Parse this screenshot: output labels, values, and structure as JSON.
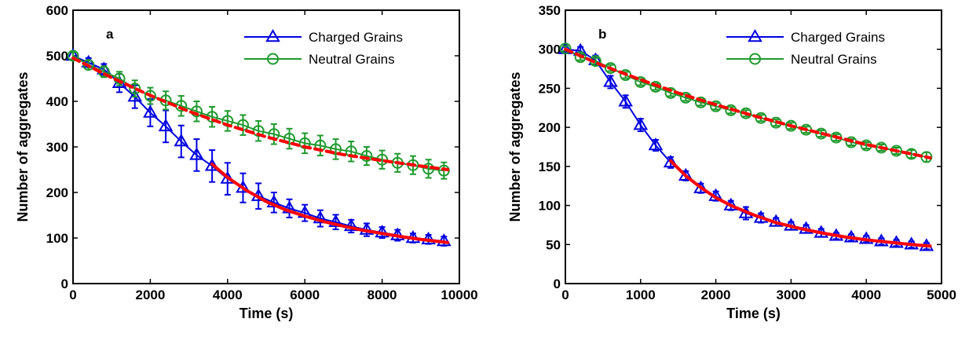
{
  "colors": {
    "charged": "#0000e0",
    "neutral": "#1f9a2e",
    "fit": "#ff0000",
    "axes": "#000000",
    "background": "#ffffff"
  },
  "chart_data": [
    {
      "type": "line",
      "panel_label": "a",
      "xlabel": "Time (s)",
      "ylabel": "Number of aggregates",
      "xlim": [
        0,
        10000
      ],
      "ylim": [
        0,
        600
      ],
      "xticks": [
        0,
        2000,
        4000,
        6000,
        8000,
        10000
      ],
      "yticks": [
        0,
        100,
        200,
        300,
        400,
        500,
        600
      ],
      "xtick_labels": [
        "0",
        "2000",
        "4000",
        "6000",
        "8000",
        "10000"
      ],
      "ytick_labels": [
        "0",
        "100",
        "200",
        "300",
        "400",
        "500",
        "600"
      ],
      "grid": false,
      "legend_position": "top-right",
      "series": [
        {
          "name": "Charged Grains",
          "color_key": "charged",
          "marker": "triangle",
          "x": [
            0,
            400,
            800,
            1200,
            1600,
            2000,
            2400,
            2800,
            3200,
            3600,
            4000,
            4400,
            4800,
            5200,
            5600,
            6000,
            6400,
            6800,
            7200,
            7600,
            8000,
            8400,
            8800,
            9200,
            9600
          ],
          "y": [
            500,
            485,
            470,
            440,
            410,
            375,
            345,
            312,
            282,
            258,
            230,
            210,
            192,
            178,
            165,
            155,
            143,
            135,
            126,
            118,
            112,
            106,
            100,
            97,
            93
          ],
          "err": [
            8,
            10,
            12,
            20,
            25,
            30,
            35,
            35,
            35,
            35,
            35,
            32,
            28,
            22,
            20,
            18,
            18,
            16,
            14,
            14,
            12,
            12,
            10,
            10,
            10
          ]
        },
        {
          "name": "Neutral Grains",
          "color_key": "neutral",
          "marker": "circle",
          "x": [
            0,
            400,
            800,
            1200,
            1600,
            2000,
            2400,
            2800,
            3200,
            3600,
            4000,
            4400,
            4800,
            5200,
            5600,
            6000,
            6400,
            6800,
            7200,
            7600,
            8000,
            8400,
            8800,
            9200,
            9600
          ],
          "y": [
            500,
            480,
            465,
            450,
            428,
            412,
            402,
            390,
            378,
            366,
            357,
            348,
            335,
            328,
            318,
            308,
            303,
            295,
            290,
            280,
            272,
            265,
            260,
            252,
            248
          ],
          "err": [
            8,
            10,
            12,
            15,
            18,
            18,
            20,
            22,
            22,
            22,
            22,
            22,
            22,
            22,
            22,
            22,
            22,
            22,
            22,
            20,
            20,
            20,
            20,
            20,
            18
          ]
        }
      ],
      "fits": [
        {
          "style": "solid",
          "x": [
            3600,
            4000,
            4500,
            5000,
            5500,
            6000,
            6500,
            7000,
            7500,
            8000,
            8500,
            9000,
            9500,
            9700
          ],
          "y": [
            262,
            233,
            204,
            180,
            162,
            148,
            136,
            126,
            117,
            110,
            103,
            97,
            92,
            90
          ]
        },
        {
          "style": "dashed",
          "x": [
            0,
            1000,
            2000,
            3000,
            4000,
            5000,
            6000,
            7000,
            8000,
            9000,
            9700
          ],
          "y": [
            495,
            452,
            413,
            378,
            348,
            322,
            300,
            283,
            270,
            258,
            250
          ]
        }
      ]
    },
    {
      "type": "line",
      "panel_label": "b",
      "xlabel": "Time (s)",
      "ylabel": "Number of aggregates",
      "xlim": [
        0,
        5000
      ],
      "ylim": [
        0,
        350
      ],
      "xticks": [
        0,
        1000,
        2000,
        3000,
        4000,
        5000
      ],
      "yticks": [
        0,
        50,
        100,
        150,
        200,
        250,
        300,
        350
      ],
      "xtick_labels": [
        "0",
        "1000",
        "2000",
        "3000",
        "4000",
        "5000"
      ],
      "ytick_labels": [
        "0",
        "50",
        "100",
        "150",
        "200",
        "250",
        "300",
        "350"
      ],
      "grid": false,
      "legend_position": "top-right",
      "series": [
        {
          "name": "Charged Grains",
          "color_key": "charged",
          "marker": "triangle",
          "x": [
            0,
            200,
            400,
            600,
            800,
            1000,
            1200,
            1400,
            1600,
            1800,
            2000,
            2200,
            2400,
            2600,
            2800,
            3000,
            3200,
            3400,
            3600,
            3800,
            4000,
            4200,
            4400,
            4600,
            4800
          ],
          "y": [
            300,
            298,
            286,
            258,
            233,
            203,
            177,
            155,
            138,
            122,
            112,
            100,
            90,
            84,
            79,
            74,
            70,
            65,
            61,
            59,
            57,
            54,
            52,
            50,
            48
          ],
          "err": [
            3,
            5,
            6,
            8,
            8,
            8,
            7,
            7,
            6,
            6,
            6,
            6,
            8,
            6,
            5,
            5,
            5,
            5,
            4,
            4,
            4,
            4,
            4,
            4,
            4
          ]
        },
        {
          "name": "Neutral Grains",
          "color_key": "neutral",
          "marker": "circle",
          "x": [
            0,
            200,
            400,
            600,
            800,
            1000,
            1200,
            1400,
            1600,
            1800,
            2000,
            2200,
            2400,
            2600,
            2800,
            3000,
            3200,
            3400,
            3600,
            3800,
            4000,
            4200,
            4400,
            4600,
            4800
          ],
          "y": [
            301,
            290,
            285,
            276,
            267,
            258,
            252,
            244,
            238,
            232,
            227,
            222,
            218,
            212,
            206,
            202,
            197,
            192,
            187,
            181,
            177,
            174,
            170,
            166,
            162
          ],
          "err": [
            3,
            4,
            4,
            4,
            4,
            4,
            4,
            4,
            4,
            4,
            4,
            4,
            4,
            4,
            4,
            4,
            4,
            4,
            4,
            4,
            4,
            4,
            4,
            5,
            6
          ]
        }
      ],
      "fits": [
        {
          "style": "solid",
          "x": [
            1400,
            1600,
            1800,
            2000,
            2200,
            2500,
            2800,
            3100,
            3400,
            3700,
            4000,
            4300,
            4600,
            4850
          ],
          "y": [
            157,
            138,
            123,
            110,
            100,
            88,
            78,
            71,
            65,
            60,
            56,
            53,
            50,
            48
          ]
        },
        {
          "style": "dashed",
          "x": [
            0,
            500,
            1000,
            1500,
            2000,
            2500,
            3000,
            3500,
            4000,
            4500,
            4850
          ],
          "y": [
            300,
            279,
            261,
            244,
            229,
            215,
            202,
            190,
            178,
            168,
            161
          ]
        }
      ]
    }
  ]
}
